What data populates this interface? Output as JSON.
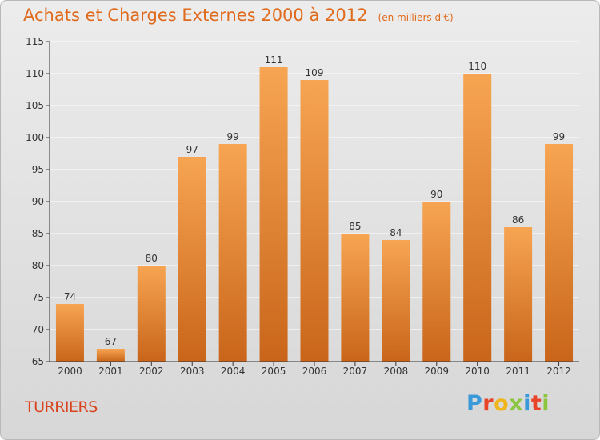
{
  "header": {
    "title": "Achats et Charges Externes 2000 à 2012",
    "unit": "(en milliers d'€)"
  },
  "footer": {
    "commune": "TURRIERS",
    "logo_text": "Proxiti",
    "logo_colors": [
      "#3a9ad9",
      "#e8442a",
      "#f0b51a",
      "#8cc63f",
      "#3a9ad9",
      "#e8442a",
      "#8cc63f"
    ]
  },
  "colors": {
    "title": "#e06a1c",
    "bar_top": "#f7a552",
    "bar_bottom": "#c9651a",
    "axis": "#333333",
    "grid": "#ffffff"
  },
  "chart_data": {
    "type": "bar",
    "title": "Achats et Charges Externes 2000 à 2012",
    "subtitle": "(en milliers d'€)",
    "categories": [
      "2000",
      "2001",
      "2002",
      "2003",
      "2004",
      "2005",
      "2006",
      "2007",
      "2008",
      "2009",
      "2010",
      "2011",
      "2012"
    ],
    "values": [
      74,
      67,
      80,
      97,
      99,
      111,
      109,
      85,
      84,
      90,
      110,
      86,
      99
    ],
    "ylim": [
      65,
      115
    ],
    "yticks": [
      65,
      70,
      75,
      80,
      85,
      90,
      95,
      100,
      105,
      110,
      115
    ],
    "grid": true,
    "data_labels": true
  }
}
